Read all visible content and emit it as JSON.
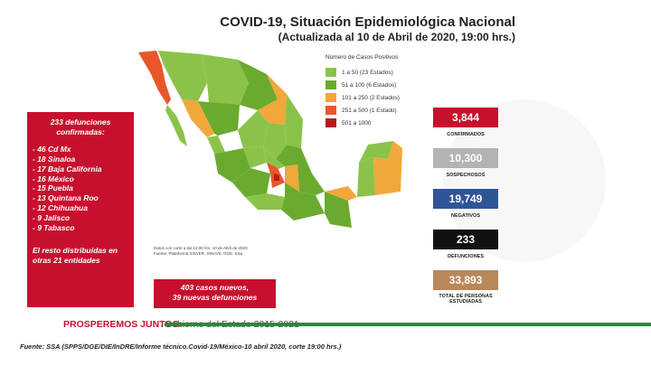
{
  "title": "COVID-19, Situación Epidemiológica Nacional",
  "subtitle": "(Actualizada al 10 de Abril de 2020, 19:00 hrs.)",
  "deaths_panel": {
    "heading_line1": "233 defunciones",
    "heading_line2": "confirmadas:",
    "items": [
      "46 Cd Mx",
      "18 Sinaloa",
      "17 Baja California",
      "16 México",
      "15 Puebla",
      "13 Quintana Roo",
      "12 Chihuahua",
      "9 Jalisco",
      "9 Tabasco"
    ],
    "rest_line1": "El resto distribuidas en",
    "rest_line2": "otras 21 entidades"
  },
  "new_cases": {
    "line1": "403 casos nuevos,",
    "line2": "39 nuevas defunciones"
  },
  "legend": {
    "title": "Número de Casos Positivos",
    "rows": [
      {
        "label": "1  a   50  (23 Estados)",
        "color": "#8bc34a"
      },
      {
        "label": "51  a   100  (6 Estados)",
        "color": "#6aab2f"
      },
      {
        "label": "101  a   250  (2 Estados)",
        "color": "#f2a73b"
      },
      {
        "label": "251  a   500  (1 Estado)",
        "color": "#e8572a"
      },
      {
        "label": "501  a  1000",
        "color": "#b21e1e"
      }
    ]
  },
  "map_note": {
    "line1": "Datos con corte a las 14:00 hrs. 10 de Abril de 2020",
    "line2": "Fuente: Plataforma SISVER. SINAVE. DGE. SSa."
  },
  "stats": [
    {
      "value": "3,844",
      "label": "CONFIRMADOS",
      "color": "#c8102e"
    },
    {
      "value": "10,300",
      "label": "SOSPECHOSOS",
      "color": "#b3b3b3"
    },
    {
      "value": "19,749",
      "label": "NEGATIVOS",
      "color": "#2f5597"
    },
    {
      "value": "233",
      "label": "DEFUNCIONES",
      "color": "#111111"
    },
    {
      "value": "33,893",
      "label": "TOTAL DE PERSONAS ESTUDIADAS",
      "color": "#b8875a"
    }
  ],
  "footer": {
    "prosper": "PROSPEREMOS JUNTOS",
    "gob": "Gobierno del Estado 2015-2021"
  },
  "source": "Fuente: SSA (SPPS/DGE/DIE/InDRE/Informe técnico.Covid-19/México-10 abril 2020, corte 19:00 hrs.)"
}
